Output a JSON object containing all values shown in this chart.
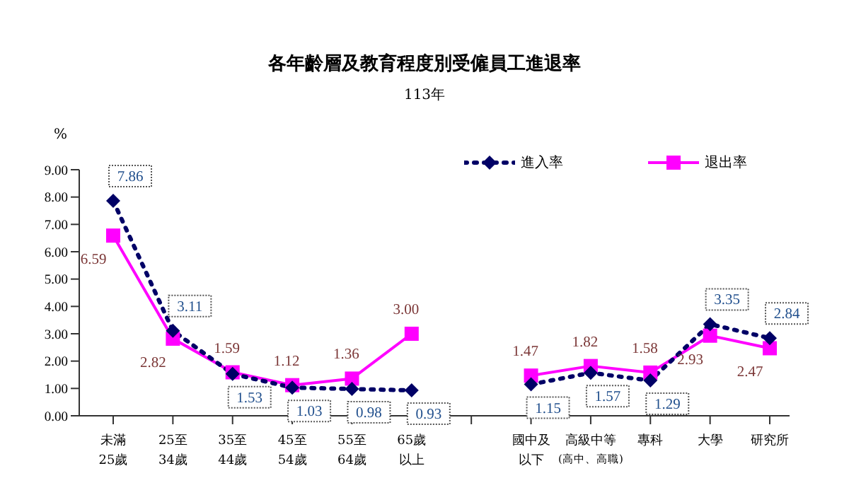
{
  "chart_data": {
    "type": "line",
    "title": "各年齡層及教育程度別受僱員工進退率",
    "subtitle": "113年",
    "ylabel": "%",
    "categories": [
      "未滿25歲",
      "25至34歲",
      "35至44歲",
      "45至54歲",
      "55至64歲",
      "65歲以上",
      null,
      "國中及以下",
      "高級中等$_{(高中、高職)}$",
      "專科",
      "大學",
      "研究所"
    ],
    "series": [
      {
        "name": "進入率",
        "color": "#000066",
        "marker": "diamond",
        "line_style": "dotted",
        "values": [
          7.86,
          3.11,
          1.53,
          1.03,
          0.98,
          0.93,
          null,
          1.15,
          1.57,
          1.29,
          3.35,
          2.84
        ],
        "value_labels": [
          "7.86",
          "3.11",
          "1.53",
          "1.03",
          "0.98",
          "0.93",
          null,
          "1.15",
          "1.57",
          "1.29",
          "3.35",
          "2.84"
        ]
      },
      {
        "name": "退出率",
        "color": "#ff00ff",
        "marker": "square",
        "line_style": "solid",
        "values": [
          6.59,
          2.82,
          1.59,
          1.12,
          1.36,
          3.0,
          null,
          1.47,
          1.82,
          1.58,
          2.93,
          2.47
        ],
        "value_labels": [
          "6.59",
          "2.82",
          "1.59",
          "1.12",
          "1.36",
          "3.00",
          null,
          "1.47",
          "1.82",
          "1.58",
          "2.93",
          "2.47"
        ]
      }
    ],
    "ylim": [
      0,
      9
    ],
    "yticks": [
      {
        "value": 0,
        "label": "0.00"
      },
      {
        "value": 1,
        "label": "1.00"
      },
      {
        "value": 2,
        "label": "2.00"
      },
      {
        "value": 3,
        "label": "3.00"
      },
      {
        "value": 4,
        "label": "4.00"
      },
      {
        "value": 5,
        "label": "5.00"
      },
      {
        "value": 6,
        "label": "6.00"
      },
      {
        "value": 7,
        "label": "7.00"
      },
      {
        "value": 8,
        "label": "8.00"
      },
      {
        "value": 9,
        "label": "9.00"
      }
    ],
    "grid": false,
    "legend": "top right"
  }
}
